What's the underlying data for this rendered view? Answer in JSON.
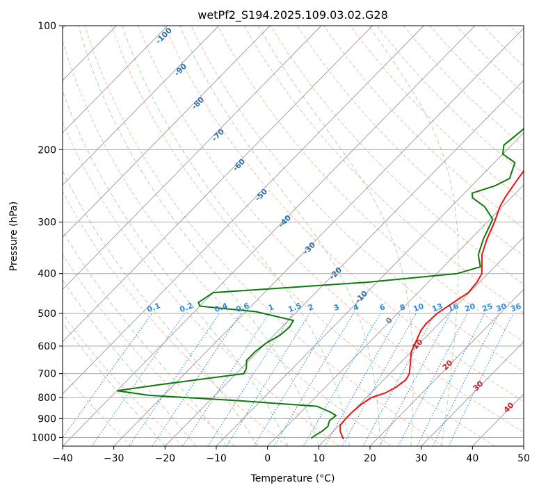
{
  "chart_data": {
    "type": "line",
    "title": "wetPf2_S194.2025.109.03.02.G28",
    "xlabel": "Temperature (°C)",
    "ylabel": "Pressure (hPa)",
    "xlim": [
      -40,
      50
    ],
    "ylim": [
      1050,
      100
    ],
    "y_scale": "log",
    "grid": true,
    "x_ticks": [
      "−40",
      "−30",
      "−20",
      "−10",
      "0",
      "10",
      "20",
      "30",
      "40",
      "50"
    ],
    "x_tick_values": [
      -40,
      -30,
      -20,
      -10,
      0,
      10,
      20,
      30,
      40,
      50
    ],
    "y_ticks": [
      "100",
      "200",
      "300",
      "400",
      "500",
      "600",
      "700",
      "800",
      "900",
      "1000"
    ],
    "y_tick_values": [
      100,
      200,
      300,
      400,
      500,
      600,
      700,
      800,
      900,
      1000
    ],
    "colors": {
      "temperature": "#ee1111",
      "dewpoint": "#0a7a0a",
      "isotherm": "#999999",
      "dry_adiabat": "#f5a080",
      "moist_adiabat": "#8fc98f",
      "mixing_ratio": "#3a8ee0",
      "isotherm_label": "#2f6fa8",
      "mixing_label": "#2e8ce0",
      "red_label": "#cc2222",
      "gray_label": "#777777"
    },
    "series": [
      {
        "points": [
          [
            100,
            19.0
          ],
          [
            110,
            17.5
          ],
          [
            120,
            17.2
          ],
          [
            130,
            17.0
          ],
          [
            140,
            14.0
          ],
          [
            150,
            10.5
          ],
          [
            160,
            6.5
          ],
          [
            170,
            4.2
          ],
          [
            180,
            1.0
          ],
          [
            190,
            -1.2
          ],
          [
            200,
            -2.3
          ],
          [
            210,
            -2.9
          ],
          [
            220,
            -2.9
          ],
          [
            240,
            -2.1
          ],
          [
            260,
            -1.3
          ],
          [
            275,
            -0.5
          ],
          [
            300,
            1.4
          ],
          [
            330,
            3.2
          ],
          [
            360,
            5.2
          ],
          [
            385,
            7.5
          ],
          [
            400,
            8.8
          ],
          [
            420,
            9.5
          ],
          [
            445,
            9.8
          ],
          [
            470,
            8.8
          ],
          [
            500,
            7.7
          ],
          [
            530,
            7.5
          ],
          [
            550,
            7.8
          ],
          [
            580,
            8.8
          ],
          [
            620,
            10.0
          ],
          [
            660,
            12.0
          ],
          [
            700,
            13.8
          ],
          [
            725,
            14.3
          ],
          [
            755,
            13.8
          ],
          [
            780,
            12.8
          ],
          [
            800,
            11.0
          ],
          [
            830,
            10.3
          ],
          [
            870,
            10.0
          ],
          [
            900,
            10.0
          ],
          [
            935,
            10.2
          ],
          [
            970,
            11.5
          ],
          [
            1010,
            13.5
          ]
        ]
      },
      {
        "points": [
          [
            100,
            -0.5
          ],
          [
            110,
            -3.0
          ],
          [
            120,
            -5.0
          ],
          [
            130,
            -6.2
          ],
          [
            138,
            -9.0
          ],
          [
            145,
            -9.5
          ],
          [
            155,
            -7.5
          ],
          [
            165,
            -9.0
          ],
          [
            170,
            -10.5
          ],
          [
            180,
            -10.8
          ],
          [
            195,
            -11.5
          ],
          [
            205,
            -10.0
          ],
          [
            215,
            -6.0
          ],
          [
            235,
            -4.0
          ],
          [
            245,
            -5.5
          ],
          [
            255,
            -8.5
          ],
          [
            262,
            -7.5
          ],
          [
            275,
            -3.5
          ],
          [
            295,
            0.5
          ],
          [
            330,
            2.5
          ],
          [
            360,
            4.5
          ],
          [
            385,
            7.2
          ],
          [
            400,
            4.0
          ],
          [
            420,
            -12.0
          ],
          [
            445,
            -40.0
          ],
          [
            470,
            -41.0
          ],
          [
            480,
            -40.0
          ],
          [
            495,
            -28.0
          ],
          [
            520,
            -19.0
          ],
          [
            540,
            -18.5
          ],
          [
            565,
            -18.8
          ],
          [
            590,
            -20.0
          ],
          [
            620,
            -20.5
          ],
          [
            650,
            -20.5
          ],
          [
            680,
            -19.0
          ],
          [
            700,
            -18.5
          ],
          [
            720,
            -25.0
          ],
          [
            745,
            -33.0
          ],
          [
            770,
            -40.0
          ],
          [
            790,
            -33.0
          ],
          [
            815,
            -14.0
          ],
          [
            840,
            2.0
          ],
          [
            870,
            6.0
          ],
          [
            885,
            7.5
          ],
          [
            910,
            7.2
          ],
          [
            940,
            8.0
          ],
          [
            965,
            7.8
          ],
          [
            990,
            7.2
          ],
          [
            1005,
            7.0
          ]
        ]
      }
    ],
    "isotherm_labels": [
      {
        "t": -100,
        "label": "-100"
      },
      {
        "t": -90,
        "label": "-90"
      },
      {
        "t": -80,
        "label": "-80"
      },
      {
        "t": -70,
        "label": "-70"
      },
      {
        "t": -60,
        "label": "-60"
      },
      {
        "t": -50,
        "label": "-50"
      },
      {
        "t": -40,
        "label": "-40"
      },
      {
        "t": -30,
        "label": "-30"
      },
      {
        "t": -20,
        "label": "-20"
      },
      {
        "t": -10,
        "label": "-10"
      }
    ],
    "mixing_ratio_labels": [
      "0.1",
      "0.2",
      "0.4",
      "0.6",
      "1",
      "1.5",
      "2",
      "3",
      "4",
      "6",
      "8",
      "10",
      "13",
      "16",
      "20",
      "25",
      "30",
      "36"
    ],
    "moist_labels": [
      {
        "value": "0",
        "color": "gray"
      },
      {
        "value": "10",
        "color": "red"
      },
      {
        "value": "20",
        "color": "red"
      },
      {
        "value": "30",
        "color": "red"
      },
      {
        "value": "40",
        "color": "red"
      }
    ]
  }
}
